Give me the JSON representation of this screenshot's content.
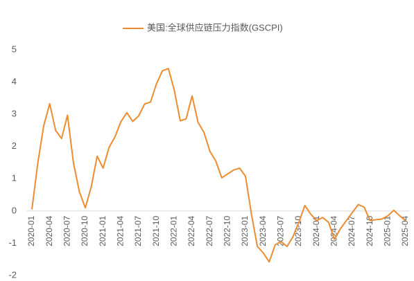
{
  "chart_data": {
    "type": "line",
    "categories": [
      "2020-01",
      null,
      null,
      "2020-04",
      null,
      null,
      "2020-07",
      null,
      null,
      "2020-10",
      null,
      null,
      "2021-01",
      null,
      null,
      "2021-04",
      null,
      null,
      "2021-07",
      null,
      null,
      "2021-10",
      null,
      null,
      "2022-01",
      null,
      null,
      "2022-04",
      null,
      null,
      "2022-07",
      null,
      null,
      "2022-10",
      null,
      null,
      "2023-01",
      null,
      null,
      "2023-04",
      null,
      null,
      "2023-07",
      null,
      null,
      "2023-10",
      null,
      null,
      "2024-01",
      null,
      null,
      "2024-04",
      null,
      null,
      "2024-07",
      null,
      null,
      "2024-10",
      null,
      null,
      "2025-01",
      null,
      null,
      "2025-04"
    ],
    "series": [
      {
        "name": "美国:全球供应链压力指数(GSCPI)",
        "color": "#ed8b2f",
        "values": [
          0.05,
          1.5,
          2.65,
          3.33,
          2.5,
          2.25,
          2.97,
          1.5,
          0.6,
          0.1,
          0.75,
          1.7,
          1.33,
          1.97,
          2.3,
          2.77,
          3.05,
          2.78,
          2.95,
          3.32,
          3.38,
          3.95,
          4.35,
          4.42,
          3.75,
          2.8,
          2.86,
          3.57,
          2.75,
          2.44,
          1.85,
          1.55,
          1.03,
          1.15,
          1.27,
          1.33,
          1.08,
          -0.1,
          -1.1,
          -1.3,
          -1.58,
          -1.05,
          -0.95,
          -1.1,
          -0.8,
          -0.35,
          0.17,
          -0.1,
          -0.3,
          -0.2,
          -0.35,
          -0.88,
          -0.55,
          -0.3,
          -0.05,
          0.2,
          0.12,
          -0.3,
          -0.27,
          -0.25,
          -0.15,
          0.02,
          -0.15,
          -0.3
        ]
      }
    ],
    "ylim": [
      -2,
      5
    ],
    "yticks": [
      -2,
      -1,
      0,
      1,
      2,
      3,
      4,
      5
    ],
    "legend": "top"
  }
}
